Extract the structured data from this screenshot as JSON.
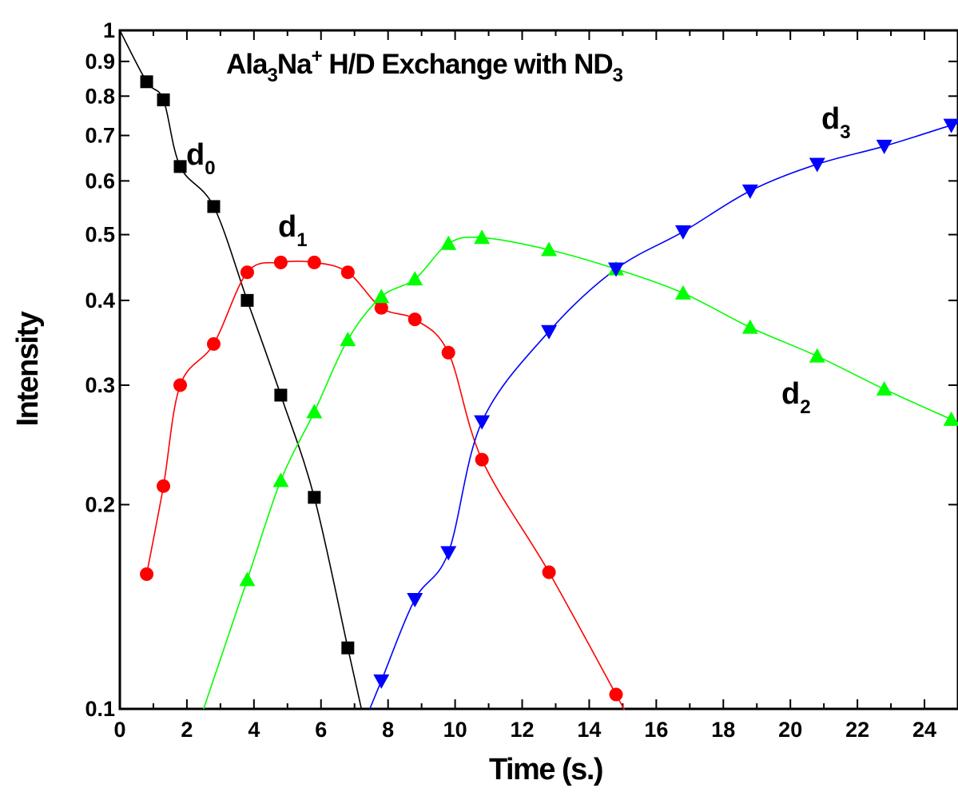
{
  "chart_data": {
    "type": "scatter",
    "title": {
      "parts": [
        {
          "text": "Ala",
          "style": "normal"
        },
        {
          "text": "3",
          "style": "sub"
        },
        {
          "text": "Na",
          "style": "normal"
        },
        {
          "text": "+",
          "style": "sup"
        },
        {
          "text": " H/D Exchange with ND",
          "style": "normal"
        },
        {
          "text": "3",
          "style": "sub"
        }
      ]
    },
    "xlabel": "Time (s.)",
    "ylabel": "Intensity",
    "xlim": [
      0,
      25
    ],
    "ylim": [
      0.1,
      1
    ],
    "yscale": "log",
    "grid": false,
    "x_ticks": [
      0,
      2,
      4,
      6,
      8,
      10,
      12,
      14,
      16,
      18,
      20,
      22,
      24
    ],
    "x_tick_labels": [
      "0",
      "2",
      "4",
      "6",
      "8",
      "10",
      "12",
      "14",
      "16",
      "18",
      "20",
      "22",
      "24"
    ],
    "y_ticks": [
      0.1,
      0.2,
      0.3,
      0.4,
      0.5,
      0.6,
      0.7,
      0.8,
      0.9,
      1
    ],
    "y_tick_labels": [
      "0.1",
      "0.2",
      "0.3",
      "0.4",
      "0.5",
      "0.6",
      "0.7",
      "0.8",
      "0.9",
      "1"
    ],
    "series": [
      {
        "name": "d0",
        "label_main": "d",
        "label_sub": "0",
        "color": "#000000",
        "marker": "square",
        "x": [
          0.8,
          1.3,
          1.8,
          2.8,
          3.8,
          4.8,
          5.8,
          6.8
        ],
        "y": [
          0.84,
          0.79,
          0.63,
          0.55,
          0.4,
          0.29,
          0.205,
          0.123
        ]
      },
      {
        "name": "d1",
        "label_main": "d",
        "label_sub": "1",
        "color": "#ff0000",
        "marker": "circle",
        "x": [
          0.8,
          1.3,
          1.8,
          2.8,
          3.8,
          4.8,
          5.8,
          6.8,
          7.8,
          8.8,
          9.8,
          10.8,
          12.8,
          14.8
        ],
        "y": [
          0.158,
          0.213,
          0.3,
          0.345,
          0.44,
          0.455,
          0.455,
          0.44,
          0.39,
          0.375,
          0.335,
          0.233,
          0.159,
          0.105
        ]
      },
      {
        "name": "d2",
        "label_main": "d",
        "label_sub": "2",
        "color": "#00ff00",
        "marker": "triangle-up",
        "x": [
          3.8,
          4.8,
          5.8,
          6.8,
          7.8,
          8.8,
          9.8,
          10.8,
          12.8,
          14.8,
          16.8,
          18.8,
          20.8,
          22.8,
          24.8
        ],
        "y": [
          0.155,
          0.217,
          0.274,
          0.35,
          0.405,
          0.43,
          0.485,
          0.495,
          0.475,
          0.445,
          0.41,
          0.365,
          0.331,
          0.296,
          0.267
        ]
      },
      {
        "name": "d3",
        "label_main": "d",
        "label_sub": "3",
        "color": "#0000ff",
        "marker": "triangle-down",
        "x": [
          7.8,
          8.8,
          9.8,
          10.8,
          12.8,
          14.8,
          16.8,
          18.8,
          20.8,
          22.8,
          24.8
        ],
        "y": [
          0.11,
          0.145,
          0.17,
          0.265,
          0.36,
          0.445,
          0.505,
          0.58,
          0.635,
          0.675,
          0.725
        ]
      }
    ]
  }
}
